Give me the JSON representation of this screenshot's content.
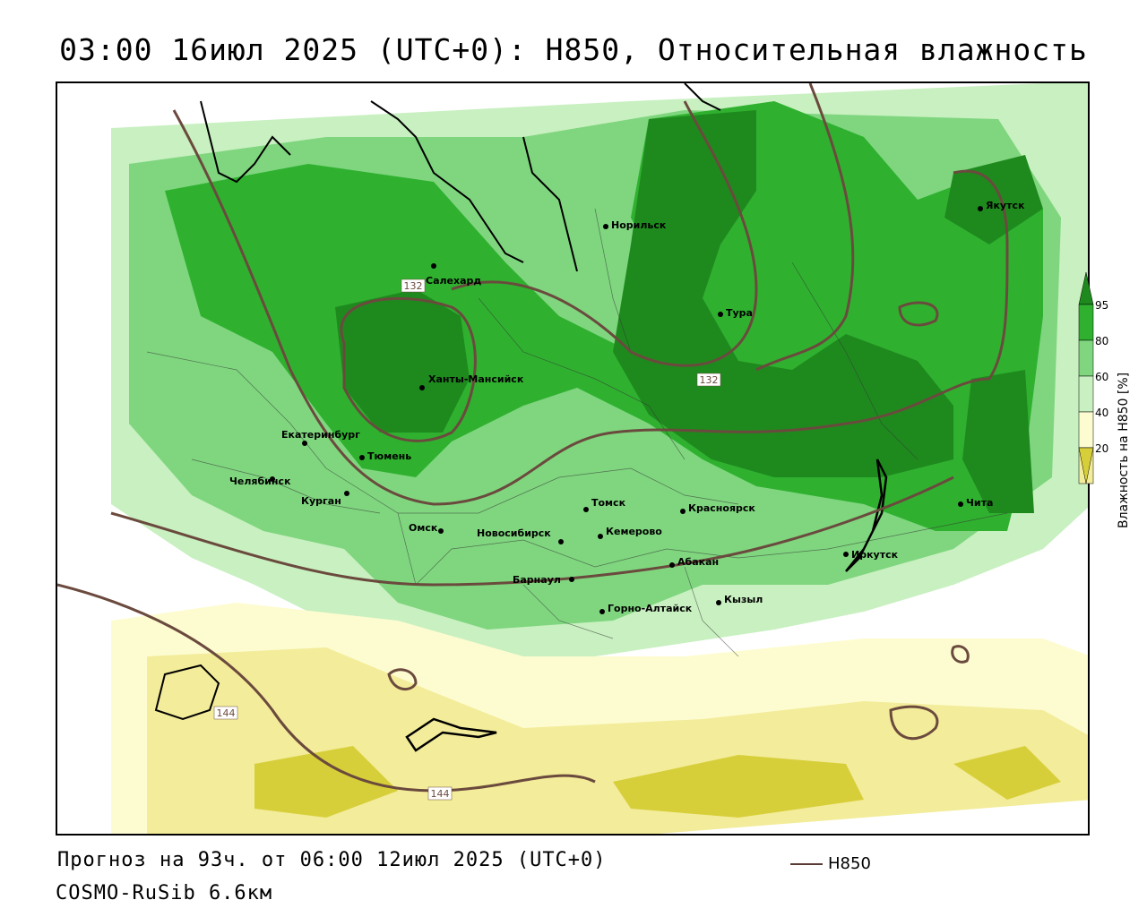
{
  "title": "03:00 16июл 2025 (UTC+0): H850, Относительная влажность",
  "forecast_text": "Прогноз на 93ч. от 06:00 12июл 2025 (UTC+0)",
  "model_text": "COSMO-RuSib 6.6км",
  "contour_legend": "H850",
  "legend": {
    "title": "Влажность на Н850 [%]",
    "ticks": [
      "95",
      "80",
      "60",
      "40",
      "20"
    ],
    "colors": [
      "#1e8a1e",
      "#2fb12f",
      "#7fd67f",
      "#c8f0c0",
      "#fdfcd0",
      "#f3ec9a",
      "#d7cf3a"
    ]
  },
  "contour_labels": [
    "132",
    "132",
    "144",
    "144"
  ],
  "cities": [
    {
      "name": "Норильск",
      "id": "norilsk"
    },
    {
      "name": "Якутск",
      "id": "yakutsk"
    },
    {
      "name": "Салехард",
      "id": "salekhard"
    },
    {
      "name": "Тура",
      "id": "tura"
    },
    {
      "name": "Ханты-Мансийск",
      "id": "khanty"
    },
    {
      "name": "Екатеринбург",
      "id": "ekb"
    },
    {
      "name": "Тюмень",
      "id": "tyumen"
    },
    {
      "name": "Челябинск",
      "id": "chelyabinsk"
    },
    {
      "name": "Курган",
      "id": "kurgan"
    },
    {
      "name": "Омск",
      "id": "omsk"
    },
    {
      "name": "Новосибирск",
      "id": "novosibirsk"
    },
    {
      "name": "Томск",
      "id": "tomsk"
    },
    {
      "name": "Кемерово",
      "id": "kemerovo"
    },
    {
      "name": "Красноярск",
      "id": "krasnoyarsk"
    },
    {
      "name": "Абакан",
      "id": "abakan"
    },
    {
      "name": "Барнаул",
      "id": "barnaul"
    },
    {
      "name": "Горно-Алтайск",
      "id": "gorno"
    },
    {
      "name": "Кызыл",
      "id": "kyzyl"
    },
    {
      "name": "Иркутск",
      "id": "irkutsk"
    },
    {
      "name": "Чита",
      "id": "chita"
    }
  ]
}
